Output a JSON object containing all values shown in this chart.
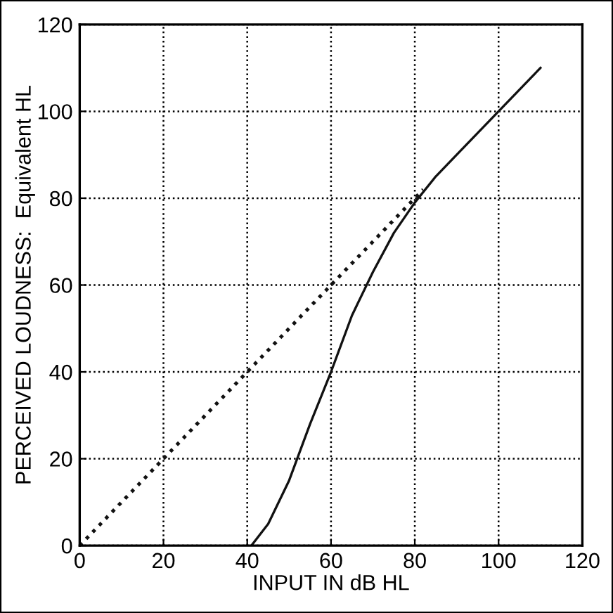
{
  "chart_data": {
    "type": "line",
    "xlabel": "INPUT IN dB HL",
    "ylabel": "PERCEIVED LOUDNESS:  Equivalent HL",
    "xlim": [
      0,
      120
    ],
    "ylim": [
      0,
      120
    ],
    "xticks": [
      0,
      20,
      40,
      60,
      80,
      100,
      120
    ],
    "yticks": [
      0,
      20,
      40,
      60,
      80,
      100,
      120
    ],
    "grid": true,
    "marker": "none",
    "series": [
      {
        "color": "#111111",
        "line_style": "dotted",
        "x": [
          0,
          82
        ],
        "values": [
          0,
          82
        ]
      },
      {
        "color": "#111111",
        "line_style": "solid",
        "x": [
          41,
          45,
          50,
          55,
          60,
          65,
          70,
          75,
          80,
          85,
          90,
          100,
          110
        ],
        "values": [
          0,
          5,
          15,
          28,
          40,
          53,
          63,
          72,
          79,
          85,
          90,
          100,
          110
        ]
      }
    ]
  }
}
